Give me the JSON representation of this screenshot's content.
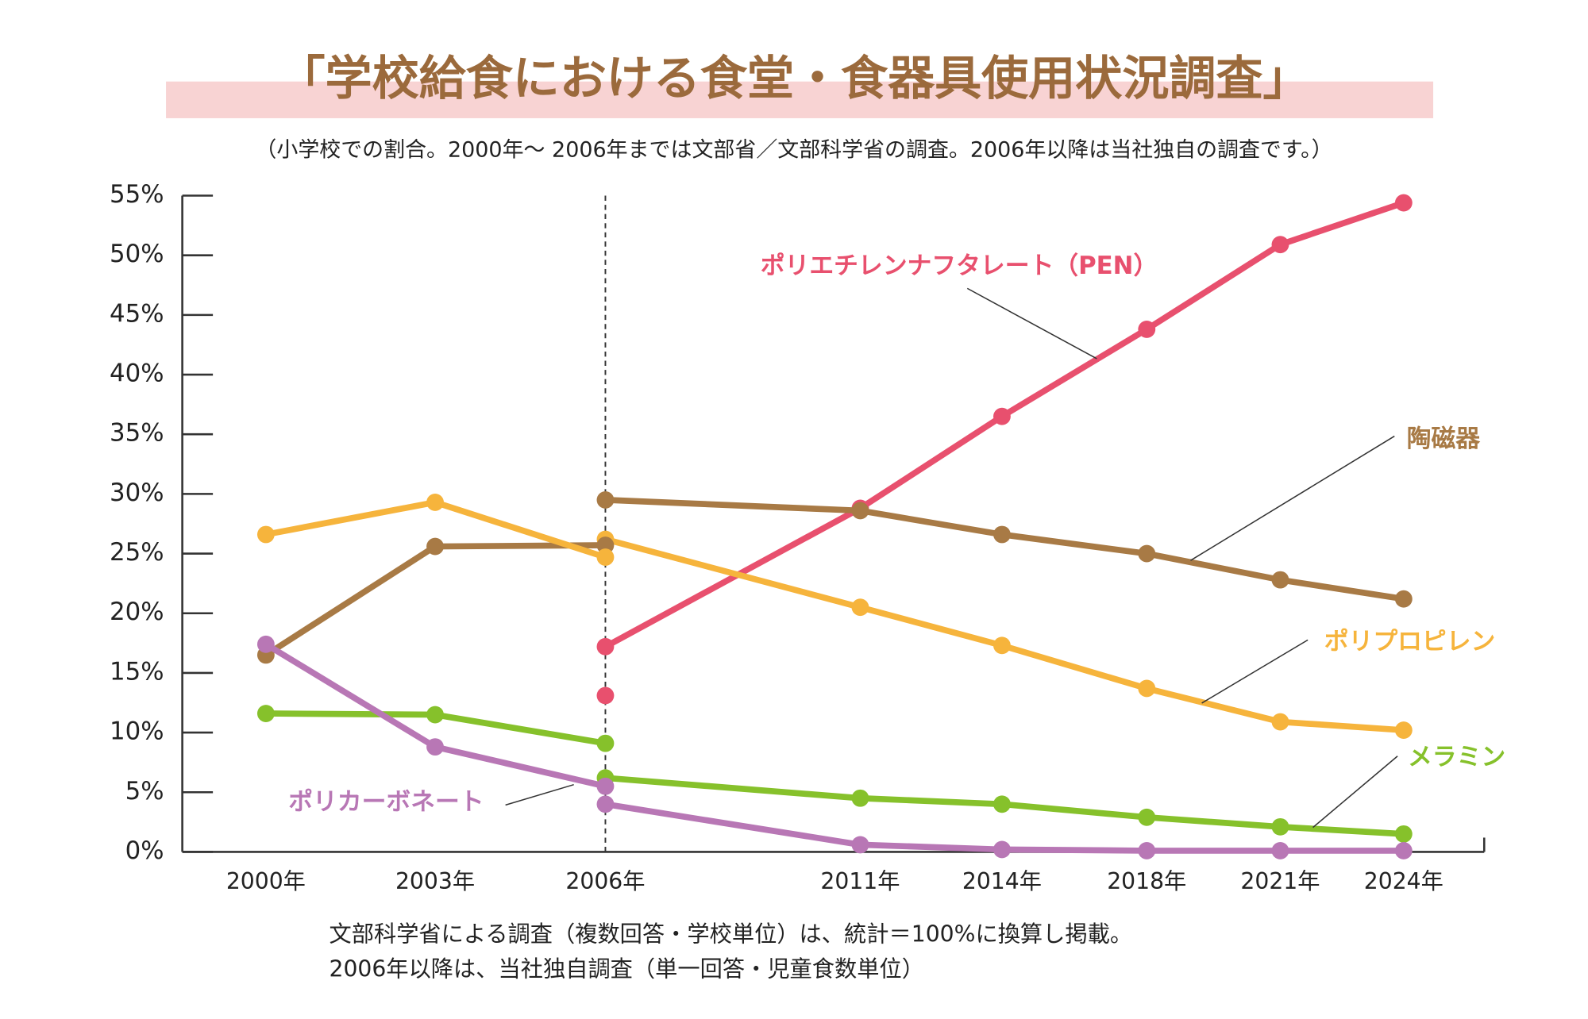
{
  "chart_data": {
    "type": "line",
    "title": "「学校給食における食堂・食器具使用状況調査」",
    "subtitle": "（小学校での割合。2000年～ 2006年までは文部省／文部科学省の調査。2006年以降は当社独自の調査です。）",
    "categories": [
      "2000年",
      "2003年",
      "2006年",
      "2011年",
      "2014年",
      "2018年",
      "2021年",
      "2024年"
    ],
    "ylim": [
      0,
      55
    ],
    "yticks": [
      {
        "value": 0,
        "label": "0%"
      },
      {
        "value": 5,
        "label": "5%"
      },
      {
        "value": 10,
        "label": "10%"
      },
      {
        "value": 15,
        "label": "15%"
      },
      {
        "value": 20,
        "label": "20%"
      },
      {
        "value": 25,
        "label": "25%"
      },
      {
        "value": 30,
        "label": "30%"
      },
      {
        "value": 35,
        "label": "35%"
      },
      {
        "value": 40,
        "label": "40%"
      },
      {
        "value": 45,
        "label": "45%"
      },
      {
        "value": 50,
        "label": "50%"
      },
      {
        "value": 55,
        "label": "55%"
      }
    ],
    "series": [
      {
        "name": "ポリエチレンナフタレート（PEN）",
        "color": "#e8506e",
        "values": [
          null,
          null,
          17.2,
          28.8,
          36.5,
          43.8,
          50.9,
          54.4
        ]
      },
      {
        "name": "陶磁器",
        "color": "#a87a45",
        "values": [
          null,
          null,
          29.5,
          28.6,
          26.6,
          25.0,
          22.8,
          21.2
        ]
      },
      {
        "name": "ポリプロピレン",
        "color": "#f6b43c",
        "values": [
          null,
          null,
          26.2,
          20.5,
          17.3,
          13.7,
          10.9,
          10.2
        ]
      },
      {
        "name": "メラミン",
        "color": "#86c12b",
        "values": [
          null,
          null,
          6.2,
          4.5,
          4.0,
          2.9,
          2.1,
          1.5
        ]
      },
      {
        "name": "ポリカーボネート",
        "color": "#b877b5",
        "values": [
          null,
          null,
          4.0,
          0.6,
          0.2,
          0.1,
          0.1,
          0.1
        ]
      },
      {
        "color": "#e8506e",
        "values": [
          null,
          null,
          13.1,
          null,
          null,
          null,
          null,
          null
        ]
      },
      {
        "color": "#a87a45",
        "values": [
          16.5,
          25.6,
          25.7,
          null,
          null,
          null,
          null,
          null
        ]
      },
      {
        "color": "#f6b43c",
        "values": [
          26.6,
          29.3,
          24.7,
          null,
          null,
          null,
          null,
          null
        ]
      },
      {
        "color": "#86c12b",
        "values": [
          11.6,
          11.5,
          9.1,
          null,
          null,
          null,
          null,
          null
        ]
      },
      {
        "color": "#b877b5",
        "values": [
          17.4,
          8.8,
          5.5,
          null,
          null,
          null,
          null,
          null
        ]
      }
    ],
    "notes": [
      "文部科学省による調査（複数回答・学校単位）は、統計＝100%に換算し掲載。",
      "2006年以降は、当社独自調査（単一回答・児童食数単位）"
    ]
  }
}
